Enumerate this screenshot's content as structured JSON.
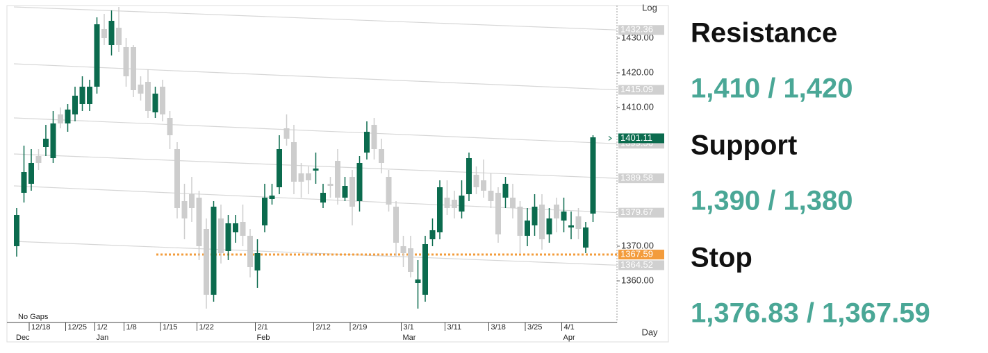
{
  "chart_data": {
    "type": "candlestick",
    "scale_label": "Log",
    "period_label": "Day",
    "note": "No Gaps",
    "categories": [
      null,
      null,
      "12/18",
      null,
      null,
      null,
      null,
      "12/25",
      null,
      null,
      null,
      "1/2",
      null,
      null,
      null,
      "1/8",
      null,
      null,
      null,
      null,
      "1/15",
      null,
      null,
      null,
      null,
      "1/22",
      null,
      null,
      null,
      null,
      null,
      null,
      null,
      "2/1",
      null,
      null,
      null,
      null,
      null,
      null,
      null,
      "2/12",
      null,
      null,
      null,
      null,
      "2/19",
      null,
      null,
      null,
      null,
      null,
      null,
      "3/1",
      null,
      null,
      null,
      null,
      null,
      "3/11",
      null,
      null,
      null,
      null,
      null,
      "3/18",
      null,
      null,
      null,
      null,
      "3/25",
      null,
      null,
      null,
      null,
      "4/1",
      null,
      null,
      null,
      null
    ],
    "category_groups": [
      "Dec",
      null,
      null,
      null,
      null,
      null,
      null,
      null,
      null,
      null,
      null,
      "Jan",
      null,
      null,
      null,
      null,
      null,
      null,
      null,
      null,
      null,
      null,
      null,
      null,
      null,
      null,
      null,
      null,
      null,
      null,
      null,
      null,
      null,
      "Feb",
      null,
      null,
      null,
      null,
      null,
      null,
      null,
      null,
      null,
      null,
      null,
      null,
      null,
      null,
      null,
      null,
      null,
      null,
      null,
      "Mar",
      null,
      null,
      null,
      null,
      null,
      null,
      null,
      null,
      null,
      null,
      null,
      null,
      null,
      null,
      null,
      null,
      null,
      null,
      null,
      null,
      null,
      "Apr",
      null,
      null,
      null,
      null
    ],
    "open": [
      1370,
      1385.4,
      1388,
      1396,
      1398.6,
      1395.4,
      1408,
      1405.4,
      1408,
      1411,
      1411,
      1416,
      1432.6,
      1428,
      1433,
      1427.4,
      1427.4,
      1416.6,
      1417.4,
      1408.6,
      1416,
      1407,
      1398,
      1383,
      1385,
      1384,
      1375,
      1356,
      1378,
      1368.6,
      1374,
      1377,
      1373,
      1363,
      1376,
      1383.6,
      1387,
      1404,
      1400,
      1391,
      1391,
      1391.8,
      1382.6,
      1388,
      1394.6,
      1384,
      1390,
      1383,
      1397,
      1405,
      1398,
      1390,
      1381.4,
      1370,
      1369.4,
      1359.4,
      1356,
      1372,
      1374,
      1384,
      1383.4,
      1380,
      1385,
      1390.6,
      1389,
      1386,
      1385.4,
      1384,
      1384,
      1381.4,
      1373,
      1376,
      1382,
      1373.4,
      1382,
      1377.4,
      1375.4,
      1378.6,
      1369.6,
      1379.4
    ],
    "high": [
      1381,
      1399,
      1398,
      1398,
      1405,
      1409,
      1410,
      1411,
      1416,
      1419,
      1418,
      1436,
      1437,
      1438,
      1439,
      1430,
      1428,
      1419,
      1421,
      1416,
      1418,
      1409,
      1400,
      1388,
      1390,
      1386,
      1378,
      1383,
      1382,
      1379,
      1379,
      1382,
      1375,
      1372,
      1388,
      1388,
      1402,
      1408,
      1405,
      1394,
      1393,
      1397,
      1388,
      1390,
      1398,
      1390,
      1392,
      1396,
      1406,
      1407,
      1401,
      1392,
      1383,
      1373,
      1373,
      1366,
      1373,
      1378,
      1389,
      1389,
      1386,
      1389,
      1397,
      1393,
      1395,
      1391,
      1387,
      1390,
      1388,
      1383,
      1381,
      1385,
      1385,
      1381,
      1384,
      1384,
      1380,
      1381,
      1377,
      1402
    ],
    "low": [
      1367,
      1382.6,
      1386,
      1392,
      1396,
      1394,
      1404,
      1403,
      1406,
      1409,
      1409,
      1414,
      1428,
      1425,
      1426,
      1416,
      1413,
      1412,
      1407,
      1407,
      1406,
      1398,
      1378,
      1372,
      1377,
      1366,
      1352,
      1354,
      1365,
      1366,
      1371,
      1370,
      1361,
      1358,
      1374,
      1382,
      1385,
      1399,
      1385,
      1384,
      1385,
      1388,
      1381,
      1384,
      1382,
      1383,
      1376,
      1380,
      1395,
      1395,
      1391,
      1380,
      1367,
      1364,
      1361,
      1352,
      1354,
      1370,
      1372,
      1379,
      1378,
      1378,
      1383,
      1385,
      1384,
      1381,
      1371,
      1381,
      1378,
      1368,
      1370,
      1373,
      1369,
      1371,
      1374,
      1374,
      1372,
      1372,
      1368,
      1377
    ],
    "close": [
      1379,
      1391.4,
      1394,
      1394,
      1401,
      1405.4,
      1405.4,
      1409.4,
      1413.4,
      1416,
      1416,
      1434,
      1430,
      1435,
      1428,
      1419,
      1415,
      1414,
      1409,
      1414,
      1408,
      1402,
      1381,
      1378,
      1381,
      1370,
      1356,
      1381.4,
      1368,
      1376.6,
      1376.6,
      1373,
      1364,
      1368,
      1384,
      1384.6,
      1398,
      1401,
      1388.6,
      1388.6,
      1389,
      1392.4,
      1385.4,
      1387.4,
      1384,
      1387.4,
      1381.4,
      1394,
      1403,
      1398,
      1394,
      1382,
      1371,
      1368,
      1362.6,
      1360.4,
      1370.6,
      1374.6,
      1387,
      1381,
      1381,
      1384.6,
      1395.4,
      1387,
      1386,
      1383,
      1373.4,
      1388,
      1381,
      1373,
      1377.4,
      1381.4,
      1372,
      1378,
      1378,
      1380,
      1376,
      1375,
      1375.4,
      1401.4
    ],
    "up_color": "#0b6b4e",
    "down_color": "#cdcdcd",
    "ylim": [
      1348,
      1439
    ],
    "yticks": [
      {
        "value": 1430,
        "label": "1430.00"
      },
      {
        "value": 1420,
        "label": "1420.00"
      },
      {
        "value": 1410,
        "label": "1410.00"
      },
      {
        "value": 1370,
        "label": "1370.00"
      },
      {
        "value": 1360,
        "label": "1360.00"
      }
    ],
    "trend_lines": [
      {
        "start": 1439,
        "end": 1432.36
      },
      {
        "start": 1422.6,
        "end": 1415.09
      },
      {
        "start": 1407,
        "end": 1399.56
      },
      {
        "start": 1396.6,
        "end": 1389.58
      },
      {
        "start": 1387.4,
        "end": 1379.67
      },
      {
        "start": 1371.4,
        "end": 1364.52
      }
    ],
    "trend_color": "#d6d6d6",
    "last_price": 1401.11,
    "stop_line": 1367.59,
    "stop_color": "#f39c3c"
  },
  "panel": {
    "levels": [
      {
        "title": "Resistance",
        "value": "1,410 / 1,420"
      },
      {
        "title": "Support",
        "value": "1,390 / 1,380"
      },
      {
        "title": "Stop",
        "value": "1,376.83 / 1,367.59"
      }
    ]
  }
}
